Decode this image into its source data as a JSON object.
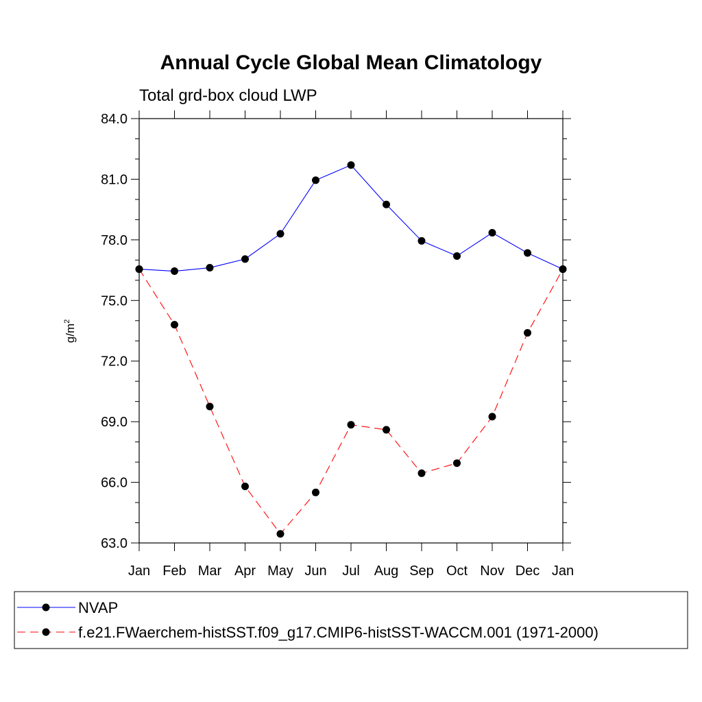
{
  "chart_data": {
    "type": "line",
    "title": "Annual Cycle Global Mean Climatology",
    "subtitle": "Total grd-box cloud LWP",
    "ylabel": "g/m",
    "ylabel_superscript": "2",
    "xlabel": "",
    "categories": [
      "Jan",
      "Feb",
      "Mar",
      "Apr",
      "May",
      "Jun",
      "Jul",
      "Aug",
      "Sep",
      "Oct",
      "Nov",
      "Dec",
      "Jan"
    ],
    "ylim": [
      63.0,
      84.0
    ],
    "yticks": [
      "63.0",
      "66.0",
      "69.0",
      "72.0",
      "75.0",
      "78.0",
      "81.0",
      "84.0"
    ],
    "ytick_values": [
      63,
      66,
      69,
      72,
      75,
      78,
      81,
      84
    ],
    "grid": false,
    "legend_position": "bottom",
    "series": [
      {
        "name": "NVAP",
        "color": "#0000ff",
        "style": "solid",
        "values": [
          76.55,
          76.45,
          76.62,
          77.05,
          78.3,
          80.95,
          81.7,
          79.75,
          77.95,
          77.2,
          78.35,
          77.35,
          76.55
        ]
      },
      {
        "name": "f.e21.FWaerchem-histSST.f09_g17.CMIP6-histSST-WACCM.001 (1971-2000)",
        "color": "#ff0000",
        "style": "dashed",
        "values": [
          76.55,
          73.8,
          69.75,
          65.8,
          63.45,
          65.5,
          68.85,
          68.6,
          66.45,
          66.95,
          69.25,
          73.4,
          76.55
        ]
      }
    ]
  }
}
